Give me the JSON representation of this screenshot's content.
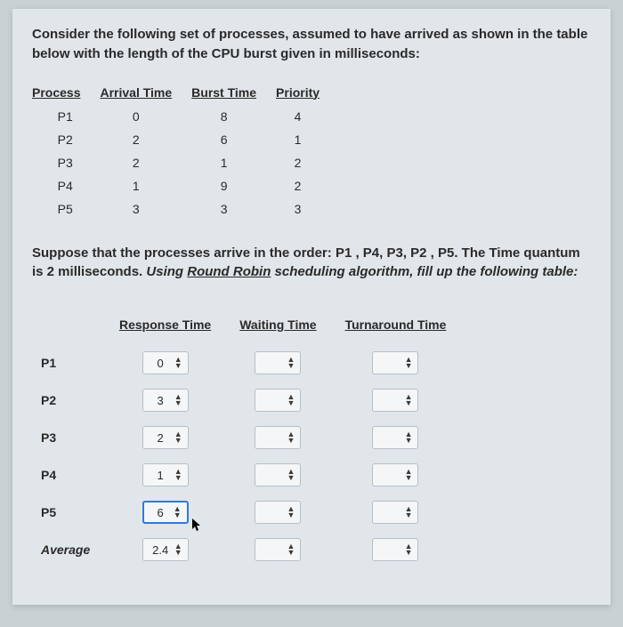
{
  "intro": "Consider the following set of processes, assumed to have arrived as shown in the table below with the length of the CPU burst given in milliseconds:",
  "table1": {
    "headers": [
      "Process",
      "Arrival Time",
      "Burst Time",
      "Priority"
    ],
    "rows": [
      [
        "P1",
        "0",
        "8",
        "4"
      ],
      [
        "P2",
        "2",
        "6",
        "1"
      ],
      [
        "P3",
        "2",
        "1",
        "2"
      ],
      [
        "P4",
        "1",
        "9",
        "2"
      ],
      [
        "P5",
        "3",
        "3",
        "3"
      ]
    ]
  },
  "mid": {
    "p1": "Suppose that the processes arrive in the order: ",
    "order": "P1 , P4, P3, P2 , P5.",
    "p2a": "  The Time quantum is 2 milliseconds. ",
    "p2b": "Using ",
    "rr": "Round Robin",
    "p2c": " scheduling algorithm, fill up the following table:"
  },
  "table2": {
    "headers": [
      "",
      "Response Time",
      "Waiting Time",
      "Turnaround Time"
    ],
    "rows": [
      {
        "label": "P1",
        "rt": "0",
        "wt": "",
        "tt": ""
      },
      {
        "label": "P2",
        "rt": "3",
        "wt": "",
        "tt": ""
      },
      {
        "label": "P3",
        "rt": "2",
        "wt": "",
        "tt": ""
      },
      {
        "label": "P4",
        "rt": "1",
        "wt": "",
        "tt": ""
      },
      {
        "label": "P5",
        "rt": "6",
        "wt": "",
        "tt": "",
        "hl": true,
        "cursor": true
      },
      {
        "label": "Average",
        "rt": "2.4",
        "wt": "",
        "tt": "",
        "avg": true
      }
    ]
  },
  "colors": {
    "page_bg": "#e1e6ea",
    "outer_bg": "#c9d1d4",
    "input_border": "#b7bfc5",
    "highlight": "#3478d6"
  }
}
